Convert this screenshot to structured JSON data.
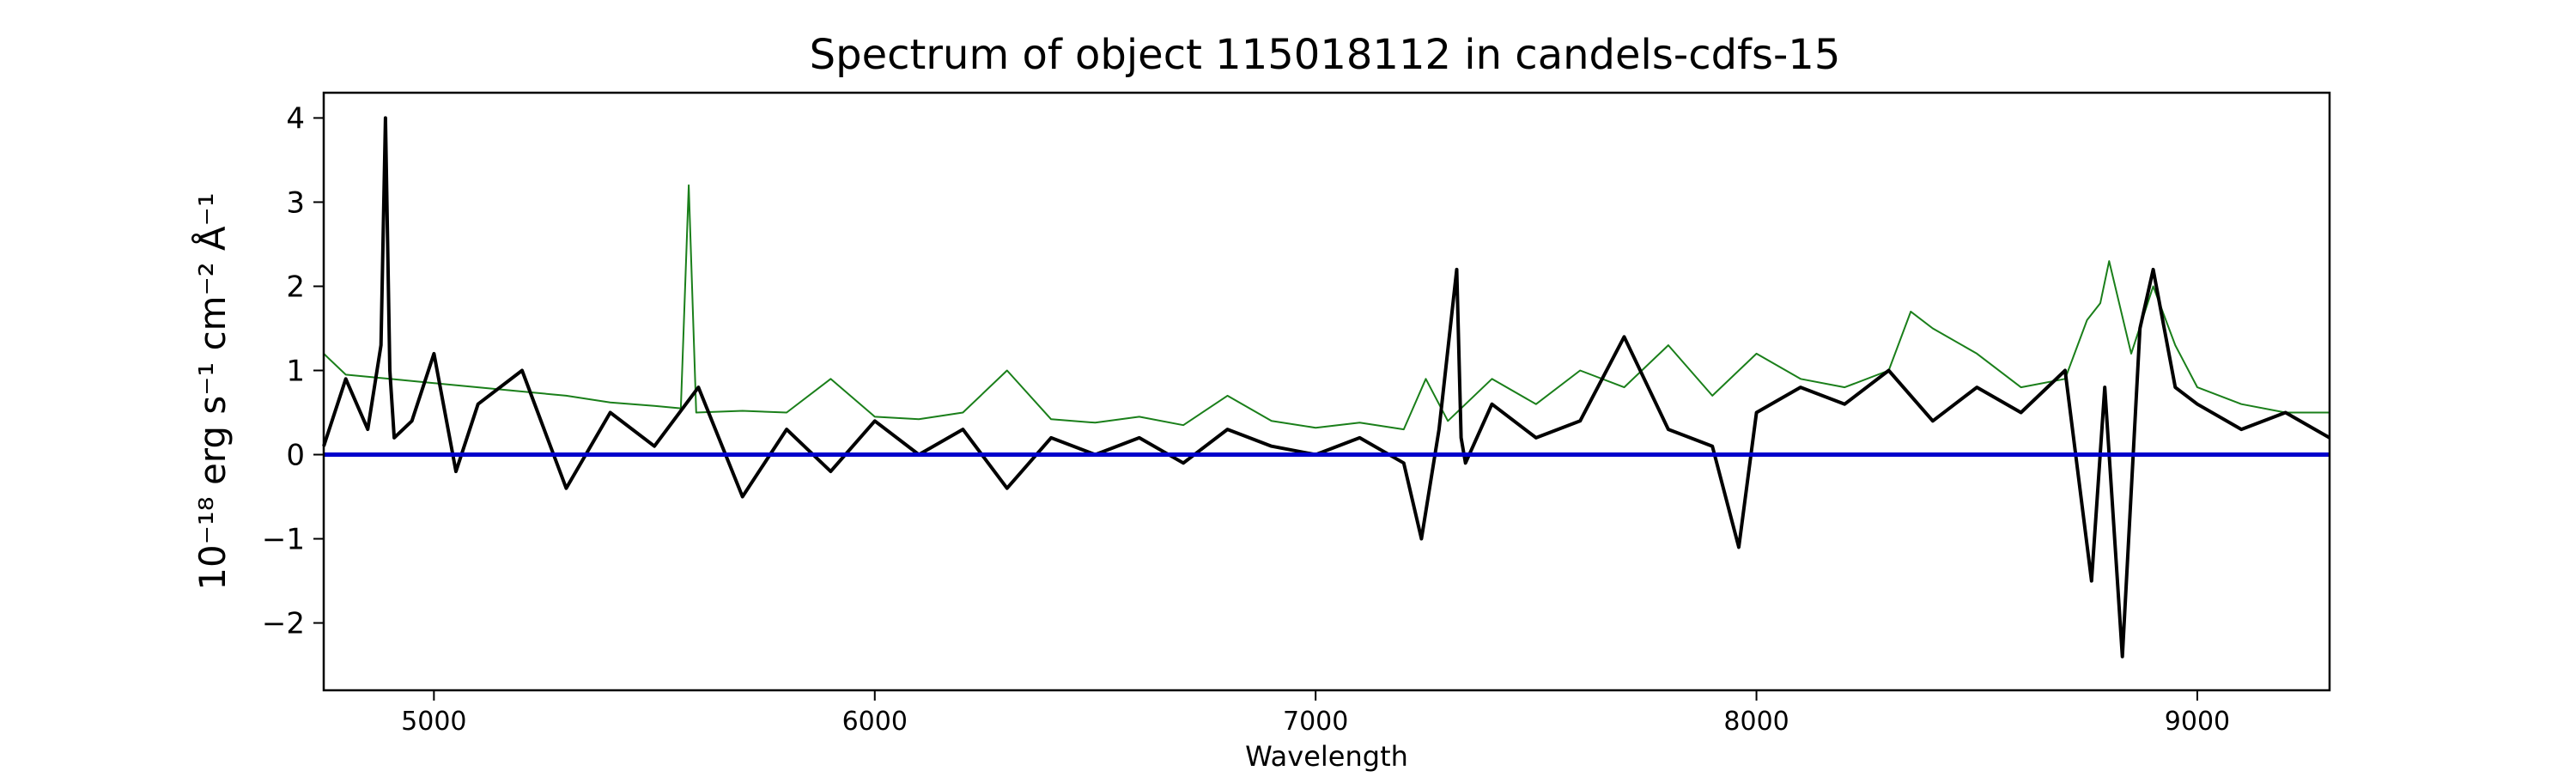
{
  "chart_data": {
    "type": "line",
    "title": "Spectrum of object 115018112 in candels-cdfs-15",
    "xlabel": "Wavelength",
    "ylabel": "10⁻¹⁸ erg s⁻¹ cm⁻² Å⁻¹",
    "xlim": [
      4750,
      9300
    ],
    "ylim": [
      -2.8,
      4.3
    ],
    "xticks": [
      5000,
      6000,
      7000,
      8000,
      9000
    ],
    "yticks": [
      -2,
      -1,
      0,
      1,
      2,
      3,
      4
    ],
    "ytick_labels": [
      "−2",
      "−1",
      "0",
      "1",
      "2",
      "3",
      "4"
    ],
    "grid": false,
    "legend": "none",
    "series": [
      {
        "color": "#000000",
        "stroke_width": 4,
        "x": [
          4750,
          4800,
          4850,
          4880,
          4890,
          4900,
          4910,
          4950,
          5000,
          5050,
          5100,
          5200,
          5300,
          5400,
          5500,
          5600,
          5700,
          5800,
          5900,
          6000,
          6100,
          6200,
          6300,
          6400,
          6500,
          6600,
          6700,
          6800,
          6900,
          7000,
          7100,
          7200,
          7240,
          7280,
          7320,
          7330,
          7340,
          7400,
          7500,
          7600,
          7700,
          7800,
          7900,
          7960,
          8000,
          8100,
          8200,
          8300,
          8400,
          8500,
          8600,
          8700,
          8760,
          8790,
          8830,
          8870,
          8900,
          8950,
          9000,
          9100,
          9200,
          9300
        ],
        "y": [
          0.1,
          0.9,
          0.3,
          1.3,
          4.0,
          1.0,
          0.2,
          0.4,
          1.2,
          -0.2,
          0.6,
          1.0,
          -0.4,
          0.5,
          0.1,
          0.8,
          -0.5,
          0.3,
          -0.2,
          0.4,
          0.0,
          0.3,
          -0.4,
          0.2,
          0.0,
          0.2,
          -0.1,
          0.3,
          0.1,
          0.0,
          0.2,
          -0.1,
          -1.0,
          0.3,
          2.2,
          0.2,
          -0.1,
          0.6,
          0.2,
          0.4,
          1.4,
          0.3,
          0.1,
          -1.1,
          0.5,
          0.8,
          0.6,
          1.0,
          0.4,
          0.8,
          0.5,
          1.0,
          -1.5,
          0.8,
          -2.4,
          1.5,
          2.2,
          0.8,
          0.6,
          0.3,
          0.5,
          0.2
        ]
      },
      {
        "color": "#1a7f1a",
        "stroke_width": 2,
        "x": [
          4750,
          4800,
          4900,
          5000,
          5100,
          5200,
          5300,
          5400,
          5500,
          5560,
          5578,
          5595,
          5700,
          5800,
          5900,
          6000,
          6100,
          6200,
          6300,
          6400,
          6500,
          6600,
          6700,
          6800,
          6900,
          7000,
          7100,
          7200,
          7250,
          7300,
          7400,
          7500,
          7600,
          7700,
          7800,
          7900,
          8000,
          8100,
          8200,
          8300,
          8350,
          8400,
          8500,
          8600,
          8700,
          8750,
          8780,
          8800,
          8850,
          8900,
          8950,
          9000,
          9100,
          9200,
          9300
        ],
        "y": [
          1.2,
          0.95,
          0.9,
          0.85,
          0.8,
          0.75,
          0.7,
          0.62,
          0.58,
          0.55,
          3.2,
          0.5,
          0.52,
          0.5,
          0.9,
          0.45,
          0.42,
          0.5,
          1.0,
          0.42,
          0.38,
          0.45,
          0.35,
          0.7,
          0.4,
          0.32,
          0.38,
          0.3,
          0.9,
          0.4,
          0.9,
          0.6,
          1.0,
          0.8,
          1.3,
          0.7,
          1.2,
          0.9,
          0.8,
          1.0,
          1.7,
          1.5,
          1.2,
          0.8,
          0.9,
          1.6,
          1.8,
          2.3,
          1.2,
          2.0,
          1.3,
          0.8,
          0.6,
          0.5,
          0.5
        ]
      },
      {
        "color": "#0000cc",
        "stroke_width": 5,
        "x": [
          4750,
          9300
        ],
        "y": [
          0,
          0
        ]
      }
    ]
  }
}
